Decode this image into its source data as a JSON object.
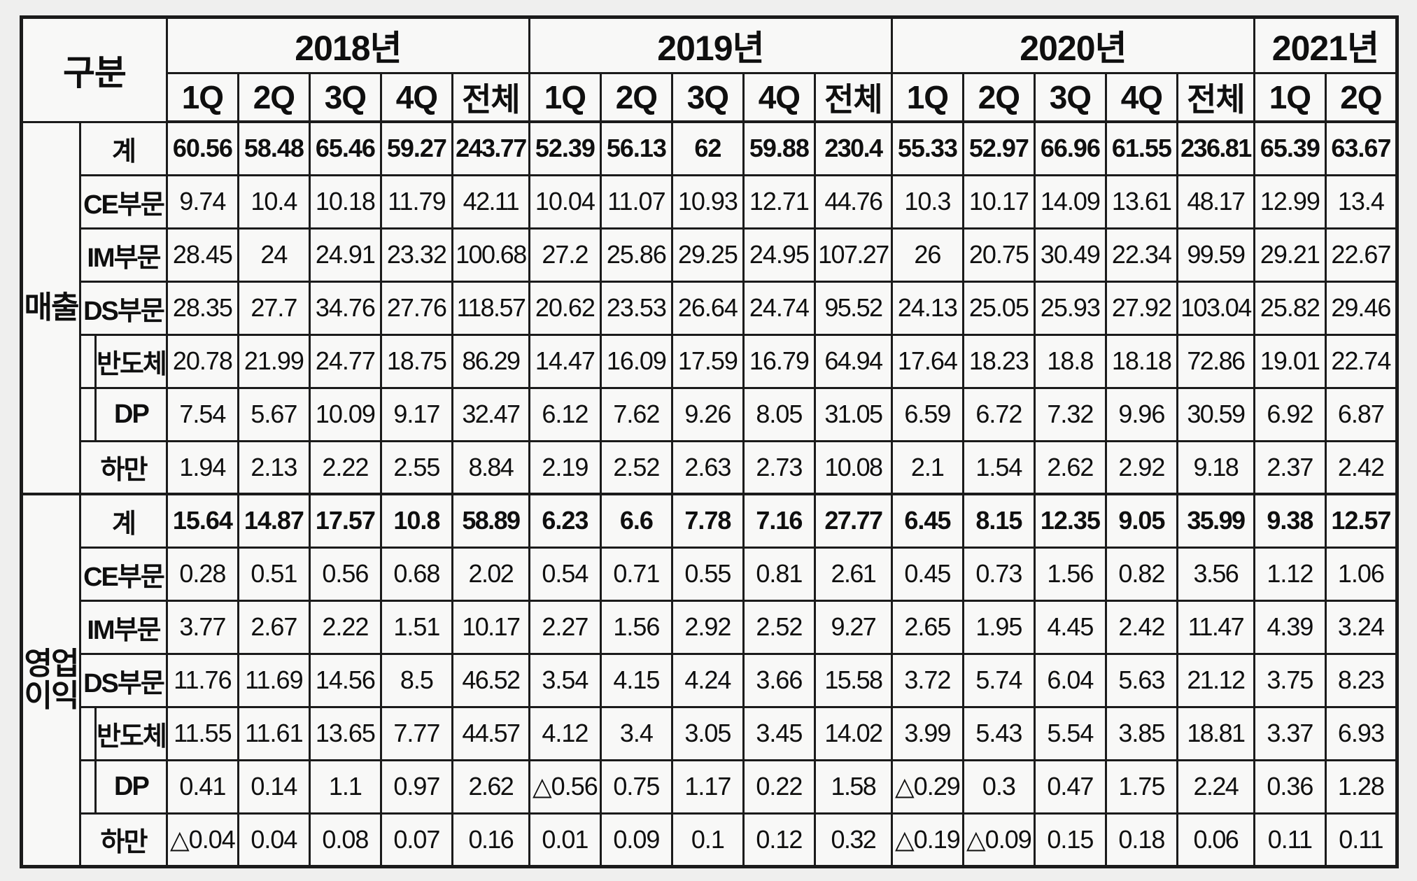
{
  "colors": {
    "border": "#1b1b1b",
    "cell_bg": "#f8f8f7",
    "page_bg": "#efefee",
    "text": "#0f0f0f"
  },
  "table": {
    "corner_label": "구분",
    "year_groups": [
      {
        "label": "2018년",
        "quarters": [
          "1Q",
          "2Q",
          "3Q",
          "4Q",
          "전체"
        ]
      },
      {
        "label": "2019년",
        "quarters": [
          "1Q",
          "2Q",
          "3Q",
          "4Q",
          "전체"
        ]
      },
      {
        "label": "2020년",
        "quarters": [
          "1Q",
          "2Q",
          "3Q",
          "4Q",
          "전체"
        ]
      },
      {
        "label": "2021년",
        "quarters": [
          "1Q",
          "2Q"
        ]
      }
    ],
    "sections": [
      {
        "label": "매출",
        "rows": [
          {
            "label": "계",
            "indent": false,
            "bold": true,
            "values": [
              "60.56",
              "58.48",
              "65.46",
              "59.27",
              "243.77",
              "52.39",
              "56.13",
              "62",
              "59.88",
              "230.4",
              "55.33",
              "52.97",
              "66.96",
              "61.55",
              "236.81",
              "65.39",
              "63.67"
            ]
          },
          {
            "label": "CE부문",
            "indent": false,
            "bold": false,
            "values": [
              "9.74",
              "10.4",
              "10.18",
              "11.79",
              "42.11",
              "10.04",
              "11.07",
              "10.93",
              "12.71",
              "44.76",
              "10.3",
              "10.17",
              "14.09",
              "13.61",
              "48.17",
              "12.99",
              "13.4"
            ]
          },
          {
            "label": "IM부문",
            "indent": false,
            "bold": false,
            "values": [
              "28.45",
              "24",
              "24.91",
              "23.32",
              "100.68",
              "27.2",
              "25.86",
              "29.25",
              "24.95",
              "107.27",
              "26",
              "20.75",
              "30.49",
              "22.34",
              "99.59",
              "29.21",
              "22.67"
            ]
          },
          {
            "label": "DS부문",
            "indent": false,
            "bold": false,
            "values": [
              "28.35",
              "27.7",
              "34.76",
              "27.76",
              "118.57",
              "20.62",
              "23.53",
              "26.64",
              "24.74",
              "95.52",
              "24.13",
              "25.05",
              "25.93",
              "27.92",
              "103.04",
              "25.82",
              "29.46"
            ]
          },
          {
            "label": "반도체",
            "indent": true,
            "bold": false,
            "values": [
              "20.78",
              "21.99",
              "24.77",
              "18.75",
              "86.29",
              "14.47",
              "16.09",
              "17.59",
              "16.79",
              "64.94",
              "17.64",
              "18.23",
              "18.8",
              "18.18",
              "72.86",
              "19.01",
              "22.74"
            ]
          },
          {
            "label": "DP",
            "indent": true,
            "bold": false,
            "values": [
              "7.54",
              "5.67",
              "10.09",
              "9.17",
              "32.47",
              "6.12",
              "7.62",
              "9.26",
              "8.05",
              "31.05",
              "6.59",
              "6.72",
              "7.32",
              "9.96",
              "30.59",
              "6.92",
              "6.87"
            ]
          },
          {
            "label": "하만",
            "indent": false,
            "bold": false,
            "values": [
              "1.94",
              "2.13",
              "2.22",
              "2.55",
              "8.84",
              "2.19",
              "2.52",
              "2.63",
              "2.73",
              "10.08",
              "2.1",
              "1.54",
              "2.62",
              "2.92",
              "9.18",
              "2.37",
              "2.42"
            ]
          }
        ]
      },
      {
        "label": "영업\n이익",
        "rows": [
          {
            "label": "계",
            "indent": false,
            "bold": true,
            "values": [
              "15.64",
              "14.87",
              "17.57",
              "10.8",
              "58.89",
              "6.23",
              "6.6",
              "7.78",
              "7.16",
              "27.77",
              "6.45",
              "8.15",
              "12.35",
              "9.05",
              "35.99",
              "9.38",
              "12.57"
            ]
          },
          {
            "label": "CE부문",
            "indent": false,
            "bold": false,
            "values": [
              "0.28",
              "0.51",
              "0.56",
              "0.68",
              "2.02",
              "0.54",
              "0.71",
              "0.55",
              "0.81",
              "2.61",
              "0.45",
              "0.73",
              "1.56",
              "0.82",
              "3.56",
              "1.12",
              "1.06"
            ]
          },
          {
            "label": "IM부문",
            "indent": false,
            "bold": false,
            "values": [
              "3.77",
              "2.67",
              "2.22",
              "1.51",
              "10.17",
              "2.27",
              "1.56",
              "2.92",
              "2.52",
              "9.27",
              "2.65",
              "1.95",
              "4.45",
              "2.42",
              "11.47",
              "4.39",
              "3.24"
            ]
          },
          {
            "label": "DS부문",
            "indent": false,
            "bold": false,
            "values": [
              "11.76",
              "11.69",
              "14.56",
              "8.5",
              "46.52",
              "3.54",
              "4.15",
              "4.24",
              "3.66",
              "15.58",
              "3.72",
              "5.74",
              "6.04",
              "5.63",
              "21.12",
              "3.75",
              "8.23"
            ]
          },
          {
            "label": "반도체",
            "indent": true,
            "bold": false,
            "values": [
              "11.55",
              "11.61",
              "13.65",
              "7.77",
              "44.57",
              "4.12",
              "3.4",
              "3.05",
              "3.45",
              "14.02",
              "3.99",
              "5.43",
              "5.54",
              "3.85",
              "18.81",
              "3.37",
              "6.93"
            ]
          },
          {
            "label": "DP",
            "indent": true,
            "bold": false,
            "values": [
              "0.41",
              "0.14",
              "1.1",
              "0.97",
              "2.62",
              "△0.56",
              "0.75",
              "1.17",
              "0.22",
              "1.58",
              "△0.29",
              "0.3",
              "0.47",
              "1.75",
              "2.24",
              "0.36",
              "1.28"
            ]
          },
          {
            "label": "하만",
            "indent": false,
            "bold": false,
            "values": [
              "△0.04",
              "0.04",
              "0.08",
              "0.07",
              "0.16",
              "0.01",
              "0.09",
              "0.1",
              "0.12",
              "0.32",
              "△0.19",
              "△0.09",
              "0.15",
              "0.18",
              "0.06",
              "0.11",
              "0.11"
            ]
          }
        ]
      }
    ]
  }
}
